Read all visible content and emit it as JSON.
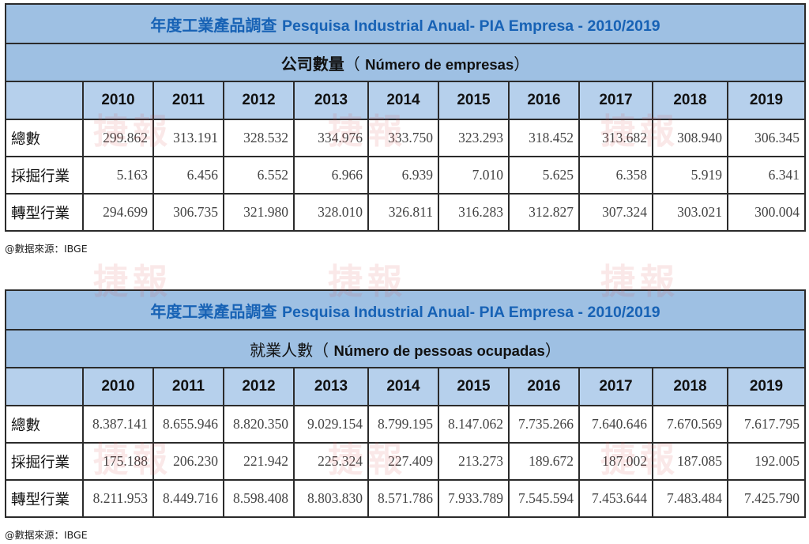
{
  "tables": [
    {
      "title_cn": "年度工業產品調查",
      "title_pt": "Pesquisa Industrial Anual- PIA Empresa - 2010/2019",
      "subtitle_cn": "公司數量",
      "subtitle_open": "（",
      "subtitle_pt": "Número de empresas",
      "subtitle_close": "）",
      "years": [
        "2010",
        "2011",
        "2012",
        "2013",
        "2014",
        "2015",
        "2016",
        "2017",
        "2018",
        "2019"
      ],
      "rows": [
        {
          "label": "總數",
          "values": [
            "299.862",
            "313.191",
            "328.532",
            "334.976",
            "333.750",
            "323.293",
            "318.452",
            "313.682",
            "308.940",
            "306.345"
          ]
        },
        {
          "label": "採掘行業",
          "values": [
            "5.163",
            "6.456",
            "6.552",
            "6.966",
            "6.939",
            "7.010",
            "5.625",
            "6.358",
            "5.919",
            "6.341"
          ]
        },
        {
          "label": "轉型行業",
          "values": [
            "294.699",
            "306.735",
            "321.980",
            "328.010",
            "326.811",
            "316.283",
            "312.827",
            "307.324",
            "303.021",
            "300.004"
          ]
        }
      ],
      "source": "@數据來源：IBGE"
    },
    {
      "title_cn": "年度工業產品調查",
      "title_pt": "Pesquisa Industrial Anual- PIA Empresa - 2010/2019",
      "subtitle_cn": "就業人數",
      "subtitle_open": "（",
      "subtitle_pt": "Número de pessoas ocupadas",
      "subtitle_close": "）",
      "years": [
        "2010",
        "2011",
        "2012",
        "2013",
        "2014",
        "2015",
        "2016",
        "2017",
        "2018",
        "2019"
      ],
      "rows": [
        {
          "label": "總數",
          "values": [
            "8.387.141",
            "8.655.946",
            "8.820.350",
            "9.029.154",
            "8.799.195",
            "8.147.062",
            "7.735.266",
            "7.640.646",
            "7.670.569",
            "7.617.795"
          ]
        },
        {
          "label": "採掘行業",
          "values": [
            "175.188",
            "206.230",
            "221.942",
            "225.324",
            "227.409",
            "213.273",
            "189.672",
            "187.002",
            "187.085",
            "192.005"
          ]
        },
        {
          "label": "轉型行業",
          "values": [
            "8.211.953",
            "8.449.716",
            "8.598.408",
            "8.803.830",
            "8.571.786",
            "7.933.789",
            "7.545.594",
            "7.453.644",
            "7.483.484",
            "7.425.790"
          ]
        }
      ],
      "source": "@數据來源：IBGE"
    }
  ],
  "watermark": "捷報",
  "colors": {
    "title_bg": "#9ec0e3",
    "header_bg": "#b6d0ec",
    "title_text": "#1762b5",
    "watermark": "#dc5050"
  }
}
